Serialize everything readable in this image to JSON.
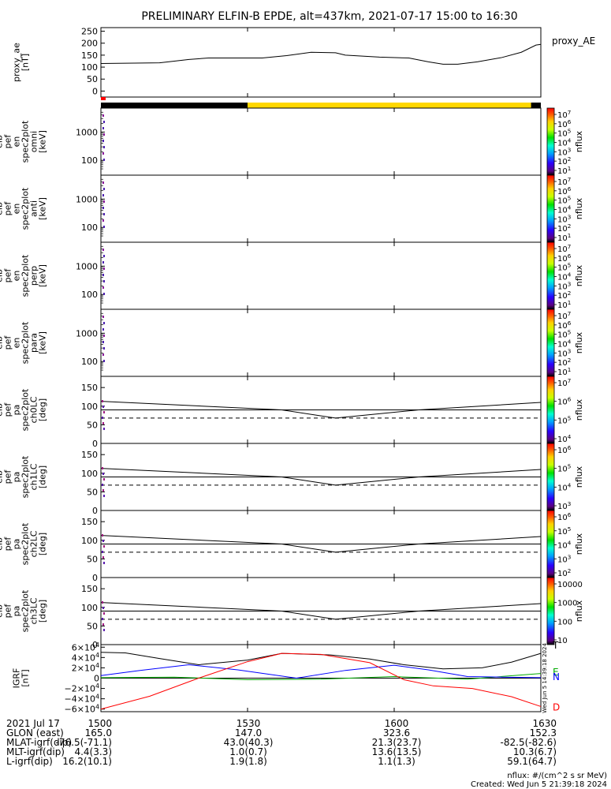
{
  "chart_data": {
    "type": "line",
    "title": "PRELIMINARY ELFIN-B EPDE, alt=437km, 2021-07-17 15:00 to 16:30",
    "time_range_min": [
      0,
      90
    ],
    "x_ticks": [
      {
        "t": 0,
        "label": "1500"
      },
      {
        "t": 30,
        "label": "1530"
      },
      {
        "t": 60,
        "label": "1600"
      },
      {
        "t": 90,
        "label": "1630"
      }
    ],
    "proxy_ae": {
      "ylabel": "proxy_ae [nT]",
      "legend": "proxy_AE",
      "ylim": [
        -25,
        265
      ],
      "yticks": [
        "250",
        "200",
        "150",
        "100",
        "50",
        "0"
      ],
      "points": [
        [
          0,
          115
        ],
        [
          12,
          118
        ],
        [
          18,
          132
        ],
        [
          22,
          138
        ],
        [
          33,
          138
        ],
        [
          38,
          148
        ],
        [
          43,
          162
        ],
        [
          48,
          160
        ],
        [
          50,
          150
        ],
        [
          57,
          142
        ],
        [
          63,
          138
        ],
        [
          67,
          122
        ],
        [
          70,
          112
        ],
        [
          73,
          112
        ],
        [
          77,
          122
        ],
        [
          82,
          140
        ],
        [
          86,
          162
        ],
        [
          89,
          192
        ],
        [
          90,
          195
        ]
      ]
    },
    "status_bar": {
      "segments": [
        {
          "t0": 0,
          "t1": 30,
          "color": "#000000"
        },
        {
          "t0": 30,
          "t1": 88,
          "color": "#ffd700"
        },
        {
          "t0": 88,
          "t1": 90,
          "color": "#000000"
        }
      ],
      "marker_color": "#ff0000"
    },
    "spectrogram_panels": [
      {
        "ylabel": [
          "elb",
          "pef",
          "en",
          "spec2plot",
          "omni",
          "[keV]"
        ],
        "yticks": [
          "1000",
          "100"
        ],
        "cbar_label": "nflux",
        "cbar_ticks": [
          "10^7",
          "10^6",
          "10^5",
          "10^4",
          "10^3",
          "10^2",
          "10^1"
        ]
      },
      {
        "ylabel": [
          "elb",
          "pef",
          "en",
          "spec2plot",
          "anti",
          "[keV]"
        ],
        "yticks": [
          "1000",
          "100"
        ],
        "cbar_label": "nflux",
        "cbar_ticks": [
          "10^7",
          "10^6",
          "10^5",
          "10^4",
          "10^3",
          "10^2",
          "10^1"
        ]
      },
      {
        "ylabel": [
          "elb",
          "pef",
          "en",
          "spec2plot",
          "perp",
          "[keV]"
        ],
        "yticks": [
          "1000",
          "100"
        ],
        "cbar_label": "nflux",
        "cbar_ticks": [
          "10^7",
          "10^6",
          "10^5",
          "10^4",
          "10^3",
          "10^2",
          "10^1"
        ]
      },
      {
        "ylabel": [
          "elb",
          "pef",
          "en",
          "spec2plot",
          "para",
          "[keV]"
        ],
        "yticks": [
          "1000",
          "100"
        ],
        "cbar_label": "nflux",
        "cbar_ticks": [
          "10^7",
          "10^6",
          "10^5",
          "10^4",
          "10^3",
          "10^2",
          "10^1"
        ]
      }
    ],
    "pitch_panels": [
      {
        "ylabel": [
          "elb",
          "pef",
          "pa",
          "spec2plot",
          "ch0LC",
          "[deg]"
        ],
        "yticks": [
          "150",
          "100",
          "50",
          "0"
        ],
        "cbar_label": "nflux",
        "cbar_ticks": [
          "10^7",
          "10^6",
          "10^5",
          "10^4"
        ]
      },
      {
        "ylabel": [
          "elb",
          "pef",
          "pa",
          "spec2plot",
          "ch1LC",
          "[deg]"
        ],
        "yticks": [
          "150",
          "100",
          "50",
          "0"
        ],
        "cbar_label": "nflux",
        "cbar_ticks": [
          "10^6",
          "10^5",
          "10^4",
          "10^3"
        ]
      },
      {
        "ylabel": [
          "elb",
          "pef",
          "pa",
          "spec2plot",
          "ch2LC",
          "[deg]"
        ],
        "yticks": [
          "150",
          "100",
          "50",
          "0"
        ],
        "cbar_label": "nflux",
        "cbar_ticks": [
          "10^6",
          "10^5",
          "10^4",
          "10^3",
          "10^2"
        ]
      },
      {
        "ylabel": [
          "elb",
          "pef",
          "pa",
          "spec2plot",
          "ch3LC",
          "[deg]"
        ],
        "yticks": [
          "150",
          "100",
          "50",
          "0"
        ],
        "cbar_label": "nflux",
        "cbar_ticks": [
          "10000",
          "1000",
          "100",
          "10"
        ]
      }
    ],
    "pitch_lines": {
      "ylim": [
        0,
        180
      ],
      "solid": [
        [
          0,
          113
        ],
        [
          37,
          90
        ],
        [
          48,
          68
        ],
        [
          65,
          90
        ],
        [
          90,
          110
        ]
      ],
      "dashed": [
        [
          0,
          68
        ],
        [
          90,
          68
        ]
      ],
      "horizontal": [
        [
          0,
          90
        ],
        [
          90,
          90
        ]
      ]
    },
    "igrf": {
      "ylabel": [
        "IGRF",
        "[nT]"
      ],
      "ylim": [
        -65000,
        65000
      ],
      "yticks": [
        "6×10^4",
        "4×10^4",
        "2×10^4",
        "0",
        "−2×10^4",
        "−4×10^4",
        "−6×10^4"
      ],
      "series": [
        {
          "name": "T",
          "color": "#000000",
          "points": [
            [
              0,
              50000
            ],
            [
              5,
              49000
            ],
            [
              12,
              38000
            ],
            [
              20,
              26000
            ],
            [
              30,
              35000
            ],
            [
              37,
              48000
            ],
            [
              47,
              45000
            ],
            [
              55,
              37000
            ],
            [
              62,
              26000
            ],
            [
              70,
              18000
            ],
            [
              78,
              20000
            ],
            [
              84,
              31000
            ],
            [
              90,
              48000
            ]
          ]
        },
        {
          "name": "E",
          "color": "#00aa00",
          "points": [
            [
              0,
              1000
            ],
            [
              15,
              2000
            ],
            [
              30,
              -3000
            ],
            [
              45,
              -2000
            ],
            [
              60,
              3000
            ],
            [
              75,
              -2000
            ],
            [
              90,
              9000
            ]
          ]
        },
        {
          "name": "N",
          "color": "#0000ff",
          "points": [
            [
              0,
              5000
            ],
            [
              8,
              15000
            ],
            [
              18,
              26000
            ],
            [
              28,
              16000
            ],
            [
              40,
              0
            ],
            [
              50,
              15000
            ],
            [
              60,
              25000
            ],
            [
              67,
              16000
            ],
            [
              75,
              3000
            ],
            [
              82,
              2000
            ],
            [
              90,
              1000
            ]
          ]
        },
        {
          "name": "D",
          "color": "#ff0000",
          "points": [
            [
              0,
              -60000
            ],
            [
              10,
              -35000
            ],
            [
              20,
              0
            ],
            [
              30,
              32000
            ],
            [
              37,
              48000
            ],
            [
              45,
              46000
            ],
            [
              55,
              30000
            ],
            [
              62,
              -3000
            ],
            [
              68,
              -15000
            ],
            [
              76,
              -20000
            ],
            [
              84,
              -36000
            ],
            [
              90,
              -55000
            ]
          ]
        }
      ]
    }
  },
  "footer": {
    "rows": [
      {
        "label": "2021 Jul 17",
        "values": [
          "1500",
          "1530",
          "1600",
          "1630"
        ]
      },
      {
        "label": "GLON (east)",
        "values": [
          "165.0",
          "147.0",
          "323.6",
          "152.3"
        ]
      },
      {
        "label": "MLAT-igrf(dip)",
        "values": [
          "-76.5(-71.1)",
          "43.0(40.3)",
          "21.3(23.7)",
          "-82.5(-82.6)"
        ]
      },
      {
        "label": "MLT-igrf(dip)",
        "values": [
          "4.4(3.3)",
          "1.0(0.7)",
          "13.6(13.5)",
          "10.3(6.7)"
        ]
      },
      {
        "label": "L-igrf(dip)",
        "values": [
          "16.2(10.1)",
          "1.9(1.8)",
          "1.1(1.3)",
          "59.1(64.7)"
        ]
      }
    ],
    "note": "nflux: #/(cm^2 s sr MeV)",
    "created": "Created: Wed Jun  5 21:39:18 2024",
    "side_stamp": "Wed Jun  5 14:39:18 2024"
  }
}
